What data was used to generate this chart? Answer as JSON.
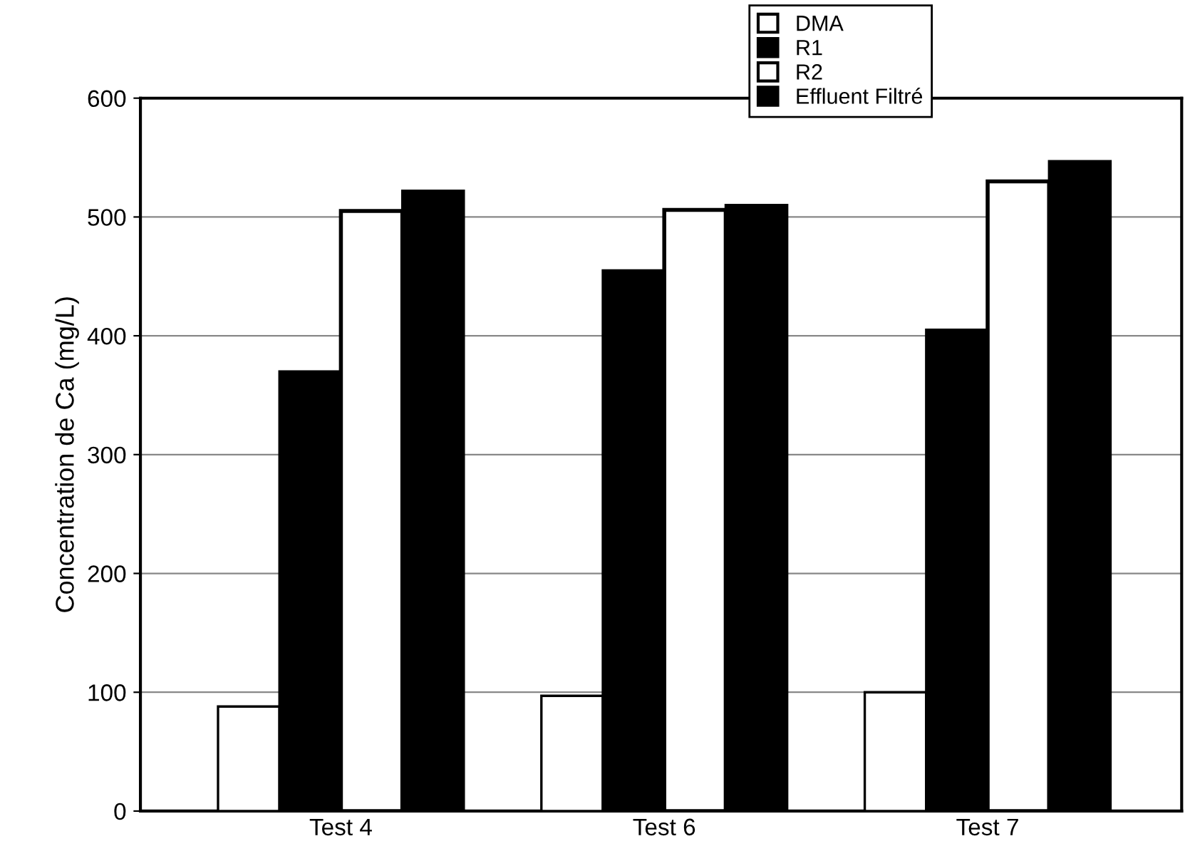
{
  "chart_data": {
    "type": "bar",
    "ylabel": "Concentration de Ca (mg/L)",
    "categories": [
      "Test 4",
      "Test 6",
      "Test 7"
    ],
    "series": [
      {
        "name": "DMA",
        "color": "#ffffff",
        "values": [
          88,
          97,
          100
        ]
      },
      {
        "name": "R1",
        "color": "#000000",
        "values": [
          370,
          455,
          405
        ]
      },
      {
        "name": "R2",
        "color": "#ffffff",
        "values": [
          505,
          506,
          530
        ]
      },
      {
        "name": "Effluent Filtré",
        "color": "#000000",
        "values": [
          522,
          510,
          547
        ]
      }
    ],
    "ylim": [
      0,
      600
    ],
    "yticks": [
      0,
      100,
      200,
      300,
      400,
      500,
      600
    ],
    "grid": "y",
    "legend": "top right"
  }
}
